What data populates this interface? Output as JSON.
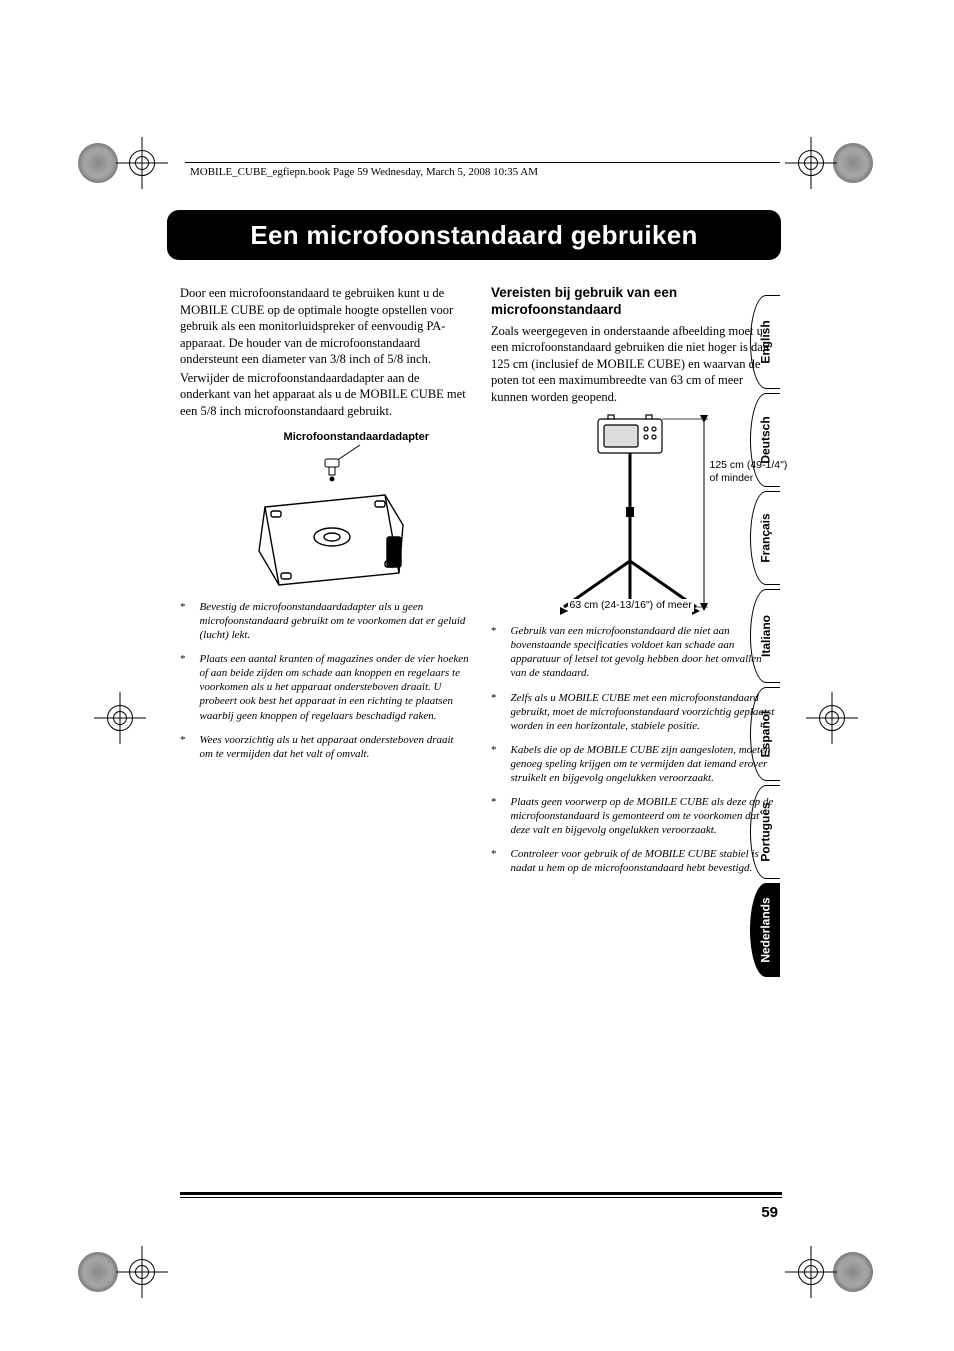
{
  "header_text": "MOBILE_CUBE_egfiepn.book  Page 59  Wednesday, March 5, 2008  10:35 AM",
  "title": "Een microfoonstandaard gebruiken",
  "left_column": {
    "para1": "Door een microfoonstandaard te gebruiken kunt u de MOBILE CUBE op de optimale hoogte opstellen voor gebruik als een monitorluidspreker of eenvoudig PA-apparaat. De houder van de microfoonstandaard ondersteunt een diameter van 3/8 inch of 5/8 inch.",
    "para2": "Verwijder de microfoonstandaardadapter aan de onderkant van het apparaat als u de MOBILE CUBE met een 5/8 inch microfoonstandaard gebruikt.",
    "adapter_label": "Microfoonstandaardadapter",
    "notes": [
      "Bevestig de microfoonstandaardadapter als u geen microfoonstandaard gebruikt om te voorkomen dat er geluid (lucht) lekt.",
      "Plaats een aantal kranten of magazines onder de vier hoeken of aan beide zijden om schade aan knoppen en regelaars te voorkomen als u het apparaat ondersteboven draait. U probeert ook best het apparaat in een richting te plaatsen waarbij geen knoppen of regelaars beschadigd raken.",
      "Wees voorzichtig als u het apparaat ondersteboven draait om te vermijden dat het valt of omvalt."
    ]
  },
  "right_column": {
    "subhead": "Vereisten bij gebruik van een microfoonstandaard",
    "para1": "Zoals weergegeven in onderstaande afbeelding moet u een microfoonstandaard gebruiken die niet hoger is dan 125 cm (inclusief de MOBILE CUBE) en waarvan de poten tot een maximumbreedte van 63 cm of meer kunnen worden geopend.",
    "dim_height": "125 cm (49-1/4\")\nof minder",
    "dim_width": "63 cm (24-13/16\") of meer",
    "notes": [
      "Gebruik van een microfoonstandaard die niet aan bovenstaande specificaties voldoet kan schade aan apparatuur of letsel tot gevolg hebben door het omvallen van de standaard.",
      "Zelfs als u MOBILE CUBE met een microfoonstandaard gebruikt, moet de microfoonstandaard voorzichtig geplaatst worden in een horizontale, stabiele positie.",
      "Kabels die op de MOBILE CUBE zijn aangesloten, moeten genoeg speling krijgen om te vermijden dat iemand erover struikelt en bijgevolg ongelukken veroorzaakt.",
      "Plaats geen voorwerp op de MOBILE CUBE als deze op de microfoonstandaard is gemonteerd om te voorkomen dat deze valt en bijgevolg ongelukken veroorzaakt.",
      "Controleer voor gebruik of de MOBILE CUBE stabiel is nadat u hem op de microfoonstandaard hebt bevestigd."
    ]
  },
  "languages": [
    {
      "label": "English",
      "active": false
    },
    {
      "label": "Deutsch",
      "active": false
    },
    {
      "label": "Français",
      "active": false
    },
    {
      "label": "Italiano",
      "active": false
    },
    {
      "label": "Español",
      "active": false
    },
    {
      "label": "Português",
      "active": false
    },
    {
      "label": "Nederlands",
      "active": true
    }
  ],
  "page_number": "59",
  "colors": {
    "title_bg": "#000000",
    "title_fg": "#ffffff",
    "page_bg": "#ffffff",
    "text": "#000000"
  }
}
